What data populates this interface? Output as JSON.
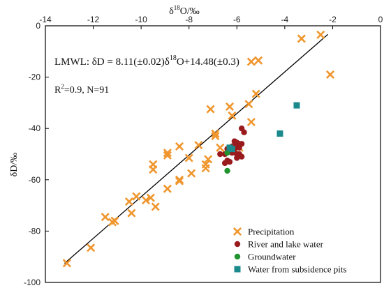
{
  "chart_data": {
    "type": "scatter",
    "title": "",
    "xlabel": "δ18O/‰",
    "xlabel_parts": {
      "prefix": "δ",
      "sup": "18",
      "suffix": "O/‰"
    },
    "ylabel": "δD/‰",
    "x_axis_position": "top",
    "xlim": [
      -14,
      0
    ],
    "ylim": [
      -100,
      0
    ],
    "x_ticks": [
      -14,
      -12,
      -10,
      -8,
      -6,
      -4,
      -2,
      0
    ],
    "y_ticks": [
      0,
      -20,
      -40,
      -60,
      -80,
      -100
    ],
    "x_tick_labels": [
      "-14",
      "-12",
      "-10",
      "-8",
      "-6",
      "-4",
      "-2",
      "0"
    ],
    "y_tick_labels": [
      "0",
      "-20",
      "-40",
      "-60",
      "-80",
      "-100"
    ],
    "grid": false,
    "legend_position": "bottom-right",
    "annotations": {
      "equation": "LMWL:  δD = 8.11(±0.02)δ18O+14.48(±0.3)",
      "eq_prefix": "LMWL:  δD = 8.11(±0.02)δ",
      "eq_sup": "18",
      "eq_suffix": "O+14.48(±0.3)",
      "stats": "R2=0.9, N=91",
      "stats_prefix": "R",
      "stats_sup": "2",
      "stats_suffix": "=0.9, N=91"
    },
    "fit_line": {
      "name": "LMWL",
      "slope": 8.11,
      "intercept": 14.48,
      "x_range": [
        -13.2,
        -2.2
      ]
    },
    "series": [
      {
        "name": "Precipitation",
        "marker": "x",
        "color": "#f0962e",
        "points": [
          [
            -13.1,
            -92.5
          ],
          [
            -12.1,
            -86.5
          ],
          [
            -11.5,
            -74.5
          ],
          [
            -11.2,
            -76.5
          ],
          [
            -11.1,
            -76.0
          ],
          [
            -10.5,
            -68.5
          ],
          [
            -10.4,
            -73.0
          ],
          [
            -10.2,
            -66.5
          ],
          [
            -9.8,
            -68.0
          ],
          [
            -9.6,
            -67.0
          ],
          [
            -9.4,
            -70.5
          ],
          [
            -9.5,
            -56.0
          ],
          [
            -9.5,
            -54.0
          ],
          [
            -8.9,
            -63.5
          ],
          [
            -8.9,
            -50.5
          ],
          [
            -8.9,
            -49.5
          ],
          [
            -8.4,
            -60.5
          ],
          [
            -8.4,
            -60.0
          ],
          [
            -8.4,
            -47.0
          ],
          [
            -8.0,
            -51.5
          ],
          [
            -7.9,
            -57.5
          ],
          [
            -7.6,
            -46.5
          ],
          [
            -7.3,
            -54.0
          ],
          [
            -7.2,
            -52.0
          ],
          [
            -7.3,
            -55.5
          ],
          [
            -7.1,
            -32.5
          ],
          [
            -6.9,
            -42.0
          ],
          [
            -6.9,
            -43.0
          ],
          [
            -6.7,
            -47.5
          ],
          [
            -6.3,
            -31.5
          ],
          [
            -6.2,
            -35.0
          ],
          [
            -5.9,
            -47.5
          ],
          [
            -5.5,
            -30.5
          ],
          [
            -5.4,
            -14.0
          ],
          [
            -5.4,
            -37.5
          ],
          [
            -5.2,
            -26.5
          ],
          [
            -5.1,
            -13.5
          ],
          [
            -3.3,
            -5.0
          ],
          [
            -2.5,
            -3.5
          ],
          [
            -2.1,
            -19.0
          ]
        ]
      },
      {
        "name": "River and lake water",
        "marker": "circle",
        "color": "#991b1e",
        "points": [
          [
            -6.7,
            -50.0
          ],
          [
            -6.5,
            -50.0
          ],
          [
            -6.4,
            -48.0
          ],
          [
            -6.3,
            -47.5
          ],
          [
            -6.3,
            -49.0
          ],
          [
            -6.2,
            -47.0
          ],
          [
            -6.1,
            -45.0
          ],
          [
            -6.1,
            -46.5
          ],
          [
            -6.0,
            -45.5
          ],
          [
            -6.0,
            -50.0
          ],
          [
            -5.9,
            -46.0
          ],
          [
            -5.9,
            -47.5
          ],
          [
            -5.8,
            -40.0
          ],
          [
            -5.8,
            -46.0
          ],
          [
            -5.9,
            -50.0
          ],
          [
            -5.8,
            -51.0
          ],
          [
            -5.7,
            -41.5
          ],
          [
            -6.4,
            -52.5
          ],
          [
            -6.3,
            -53.0
          ],
          [
            -6.2,
            -49.5
          ],
          [
            -6.1,
            -48.0
          ],
          [
            -6.5,
            -53.5
          ],
          [
            -6.0,
            -51.5
          ]
        ]
      },
      {
        "name": "Groundwater",
        "marker": "circle",
        "color": "#22942f",
        "points": [
          [
            -6.4,
            -56.5
          ],
          [
            -6.4,
            -49.5
          ]
        ]
      },
      {
        "name": "Water from subsidence pits",
        "marker": "square",
        "color": "#1a8a8c",
        "points": [
          [
            -3.5,
            -31.0
          ],
          [
            -4.2,
            -42.0
          ],
          [
            -6.3,
            -47.5
          ],
          [
            -6.2,
            -48.0
          ]
        ]
      }
    ]
  }
}
